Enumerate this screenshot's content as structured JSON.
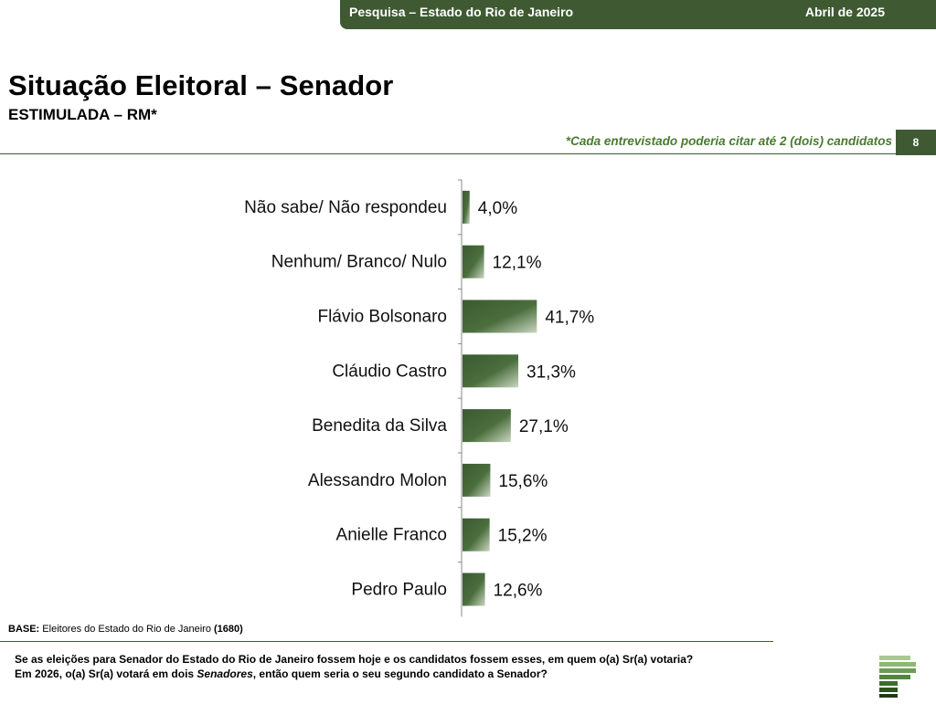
{
  "header": {
    "survey": "Pesquisa – Estado do Rio de Janeiro",
    "date": "Abril de 2025"
  },
  "title": "Situação Eleitoral – Senador",
  "subtitle": "ESTIMULADA – RM*",
  "note": "*Cada entrevistado poderia citar até 2 (dois) candidatos",
  "page_number": "8",
  "chart_data": {
    "type": "bar",
    "orientation": "horizontal",
    "categories": [
      "Não sabe/ Não respondeu",
      "Nenhum/ Branco/ Nulo",
      "Flávio Bolsonaro",
      "Cláudio Castro",
      "Benedita da Silva",
      "Alessandro Molon",
      "Anielle Franco",
      "Pedro Paulo"
    ],
    "values": [
      4.0,
      12.1,
      41.7,
      31.3,
      27.1,
      15.6,
      15.2,
      12.6
    ],
    "value_labels": [
      "4,0%",
      "12,1%",
      "41,7%",
      "31,3%",
      "27,1%",
      "15,6%",
      "15,2%",
      "12,6%"
    ],
    "bar_color": "#3f5a33",
    "xlim": [
      0,
      100
    ],
    "grid": false,
    "legend": "none"
  },
  "base": {
    "label": "BASE:",
    "text": " Eleitores do Estado do Rio de Janeiro ",
    "count": "(1680)"
  },
  "question": {
    "line1": "Se as eleições para Senador do Estado do Rio de Janeiro fossem hoje e os candidatos fossem esses, em quem o(a) Sr(a) votaria?",
    "line2_a": "Em 2026, o(a) Sr(a) votará em dois ",
    "line2_em": "Senadores",
    "line2_b": ", então quem seria o seu segundo candidato a Senador?"
  },
  "colors": {
    "brand_green": "#3f5a33",
    "note_green": "#4a7a30"
  },
  "logo": {
    "icon": "stacked-bars-logo-icon"
  }
}
